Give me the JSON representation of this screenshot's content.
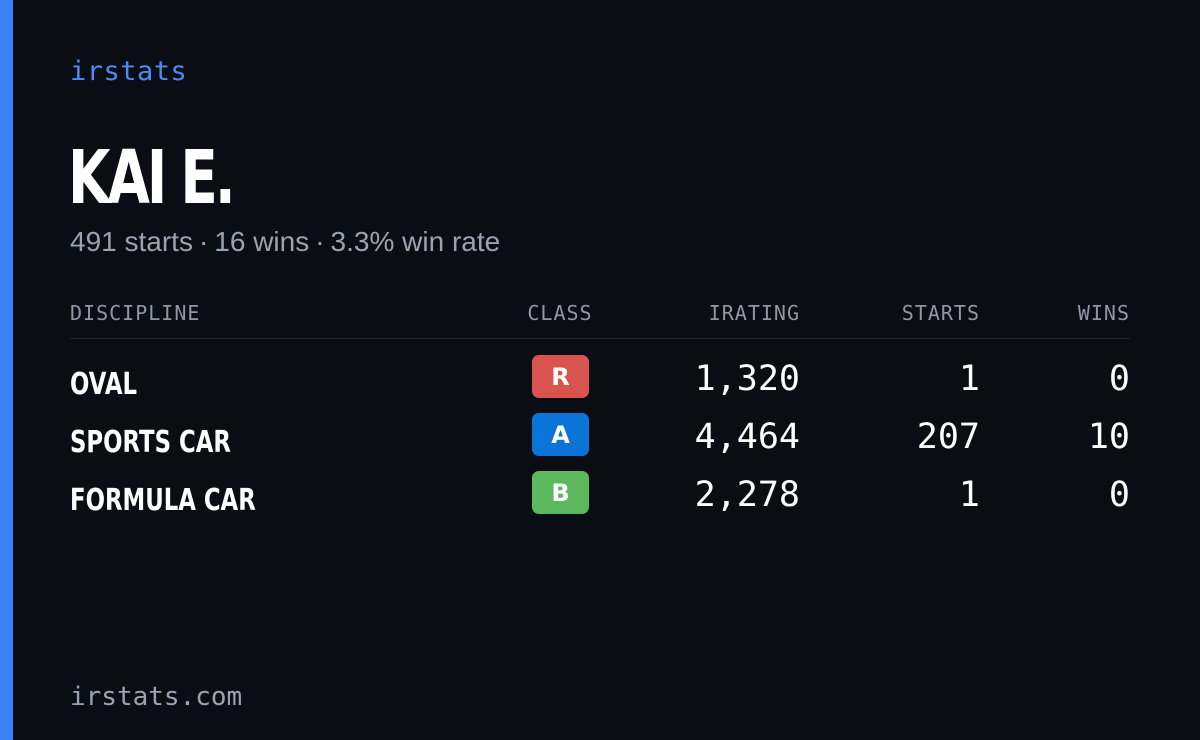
{
  "brand": "irstats",
  "player": {
    "name": "KAI E.",
    "starts": "491 starts",
    "wins": "16 wins",
    "win_rate": "3.3% win rate",
    "separator": "·"
  },
  "table": {
    "headers": {
      "discipline": "DISCIPLINE",
      "class": "CLASS",
      "irating": "IRATING",
      "starts": "STARTS",
      "wins": "WINS"
    },
    "rows": [
      {
        "discipline": "OVAL",
        "class": "R",
        "class_color": "#d9534f",
        "irating": "1,320",
        "starts": "1",
        "wins": "0"
      },
      {
        "discipline": "SPORTS CAR",
        "class": "A",
        "class_color": "#0b74d9",
        "irating": "4,464",
        "starts": "207",
        "wins": "10"
      },
      {
        "discipline": "FORMULA CAR",
        "class": "B",
        "class_color": "#5cb85c",
        "irating": "2,278",
        "starts": "1",
        "wins": "0"
      }
    ]
  },
  "footer": {
    "url": "irstats.com"
  },
  "colors": {
    "background": "#0a0d14",
    "accent": "#3b82f6",
    "brand_text": "#4a8cf5",
    "muted_text": "#9aa3b2"
  }
}
